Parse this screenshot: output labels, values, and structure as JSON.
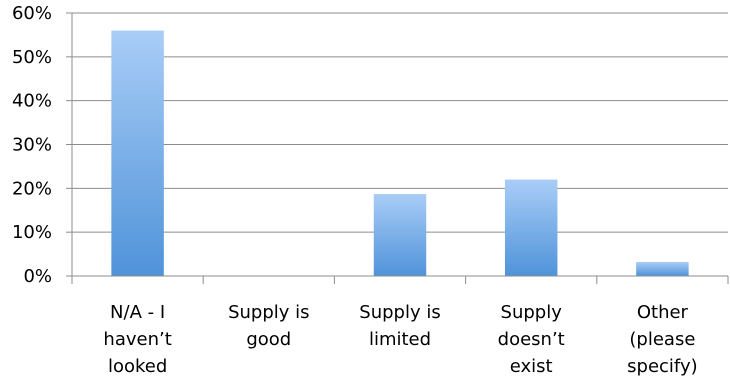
{
  "chart_data": {
    "type": "bar",
    "categories": [
      [
        "N/A - I",
        "haven’t",
        "looked"
      ],
      [
        "Supply is",
        "good"
      ],
      [
        "Supply is",
        "limited"
      ],
      [
        "Supply",
        "doesn’t",
        "exist"
      ],
      [
        "Other",
        "(please",
        "specify)"
      ]
    ],
    "values": [
      56,
      0,
      18.7,
      22,
      3.2
    ],
    "y_ticks": [
      "0%",
      "10%",
      "20%",
      "30%",
      "40%",
      "50%",
      "60%"
    ],
    "ylim": [
      0,
      60
    ],
    "grid": true,
    "legend": "none",
    "bar_color_top": "#a9cdf7",
    "bar_color_bottom": "#4f93d9"
  }
}
